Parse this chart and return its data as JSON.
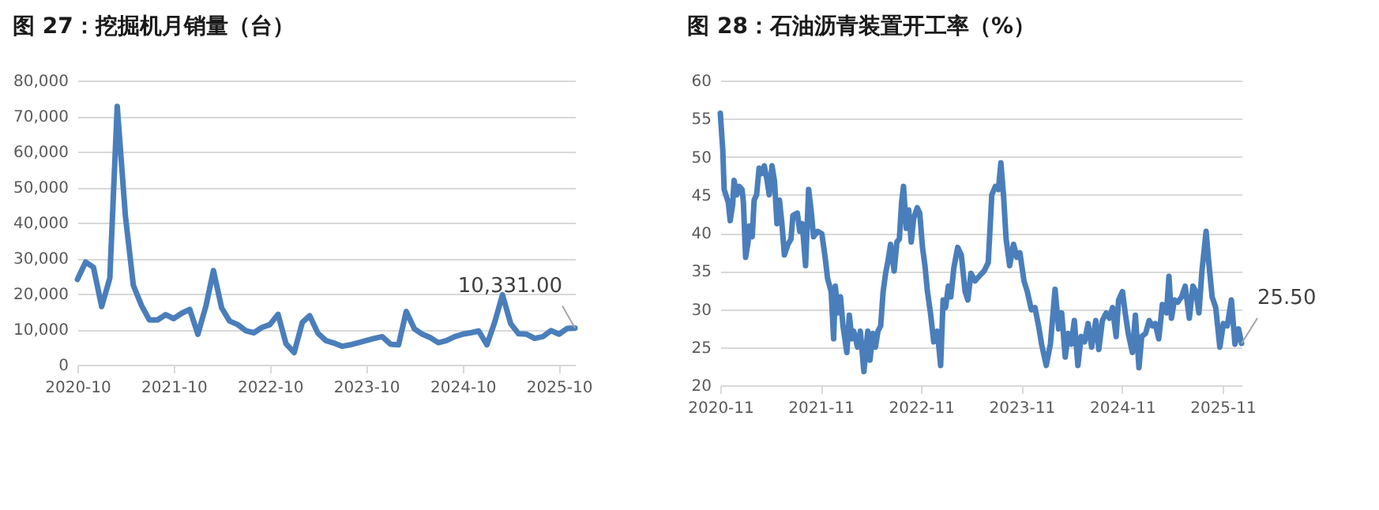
{
  "chart_data": [
    {
      "type": "line",
      "title": "图 27：挖掘机月销量（台）",
      "x": [
        "2020-10",
        "2020-11",
        "2020-12",
        "2021-01",
        "2021-02",
        "2021-03",
        "2021-04",
        "2021-05",
        "2021-06",
        "2021-07",
        "2021-08",
        "2021-09",
        "2021-10",
        "2021-11",
        "2021-12",
        "2022-01",
        "2022-02",
        "2022-03",
        "2022-04",
        "2022-05",
        "2022-06",
        "2022-07",
        "2022-08",
        "2022-09",
        "2022-10",
        "2022-11",
        "2022-12",
        "2023-01",
        "2023-02",
        "2023-03",
        "2023-04",
        "2023-05",
        "2023-06",
        "2023-07",
        "2023-08",
        "2023-09",
        "2023-10",
        "2023-11",
        "2023-12",
        "2024-01",
        "2024-02",
        "2024-03",
        "2024-04",
        "2024-05",
        "2024-06",
        "2024-07",
        "2024-08",
        "2024-09",
        "2024-10",
        "2024-11",
        "2024-12",
        "2025-01",
        "2025-02",
        "2025-03",
        "2025-04",
        "2025-05",
        "2025-06",
        "2025-07",
        "2025-08",
        "2025-09",
        "2025-10",
        "2025-11",
        "2025-12"
      ],
      "series": [
        {
          "color": "#4a7ebb",
          "values": [
            24000,
            28900,
            27400,
            16400,
            24400,
            72700,
            41900,
            22400,
            16700,
            12600,
            12600,
            14100,
            13000,
            14500,
            15600,
            8600,
            16700,
            26500,
            16000,
            12300,
            11300,
            9600,
            9000,
            10500,
            11300,
            14200,
            5900,
            3400,
            11900,
            13800,
            8900,
            6800,
            6100,
            5200,
            5600,
            6200,
            6800,
            7400,
            7900,
            5800,
            5600,
            15000,
            10100,
            8600,
            7600,
            6200,
            6800,
            7900,
            8600,
            9000,
            9500,
            5600,
            12300,
            19700,
            11600,
            8700,
            8600,
            7400,
            7900,
            9600,
            8600,
            10200,
            10331
          ]
        }
      ],
      "xlim": [
        "2020-10",
        "2025-12"
      ],
      "xticks": [
        "2020-10",
        "2021-10",
        "2022-10",
        "2023-10",
        "2024-10",
        "2025-10"
      ],
      "ylim": [
        0,
        80000
      ],
      "yticks": [
        {
          "value": 0,
          "label": "0"
        },
        {
          "value": 10000,
          "label": "10,000"
        },
        {
          "value": 20000,
          "label": "20,000"
        },
        {
          "value": 30000,
          "label": "30,000"
        },
        {
          "value": 40000,
          "label": "40,000"
        },
        {
          "value": 50000,
          "label": "50,000"
        },
        {
          "value": 60000,
          "label": "60,000"
        },
        {
          "value": 70000,
          "label": "70,000"
        },
        {
          "value": 80000,
          "label": "80,000"
        }
      ],
      "grid": "y",
      "annotations": [
        {
          "text": "10,331.00",
          "x": "2025-12",
          "y": 10331
        }
      ]
    },
    {
      "type": "line",
      "title": "图 28：石油沥青装置开工率（%）",
      "x": [
        "2020-11-01",
        "2020-11-10",
        "2020-11-15",
        "2020-11-30",
        "2020-12-07",
        "2020-12-16",
        "2020-12-21",
        "2020-12-31",
        "2021-01-09",
        "2021-01-19",
        "2021-01-24",
        "2021-02-01",
        "2021-02-10",
        "2021-02-15",
        "2021-02-25",
        "2021-03-04",
        "2021-03-13",
        "2021-03-22",
        "2021-04-01",
        "2021-04-10",
        "2021-04-19",
        "2021-04-28",
        "2021-05-08",
        "2021-05-17",
        "2021-05-26",
        "2021-06-04",
        "2021-06-13",
        "2021-06-22",
        "2021-07-05",
        "2021-07-16",
        "2021-07-23",
        "2021-08-08",
        "2021-08-17",
        "2021-08-26",
        "2021-09-07",
        "2021-09-18",
        "2021-09-27",
        "2021-10-06",
        "2021-10-21",
        "2021-11-05",
        "2021-11-16",
        "2021-11-26",
        "2021-12-09",
        "2021-12-18",
        "2021-12-24",
        "2022-01-03",
        "2022-01-12",
        "2022-01-21",
        "2022-02-04",
        "2022-02-13",
        "2022-02-22",
        "2022-03-01",
        "2022-03-15",
        "2022-03-25",
        "2022-04-07",
        "2022-04-21",
        "2022-04-29",
        "2022-05-10",
        "2022-05-19",
        "2022-05-28",
        "2022-06-07",
        "2022-06-16",
        "2022-06-25",
        "2022-07-04",
        "2022-07-13",
        "2022-07-26",
        "2022-08-05",
        "2022-08-14",
        "2022-08-22",
        "2022-08-29",
        "2022-09-08",
        "2022-09-17",
        "2022-09-26",
        "2022-10-05",
        "2022-10-18",
        "2022-10-27",
        "2022-11-06",
        "2022-11-15",
        "2022-11-24",
        "2022-12-05",
        "2022-12-17",
        "2022-12-30",
        "2023-01-11",
        "2023-01-20",
        "2023-01-29",
        "2023-02-08",
        "2023-02-17",
        "2023-02-28",
        "2023-03-14",
        "2023-03-27",
        "2023-04-10",
        "2023-04-20",
        "2023-05-01",
        "2023-05-16",
        "2023-05-31",
        "2023-06-18",
        "2023-07-03",
        "2023-07-16",
        "2023-07-29",
        "2023-08-09",
        "2023-08-18",
        "2023-08-28",
        "2023-09-06",
        "2023-09-19",
        "2023-10-03",
        "2023-10-15",
        "2023-10-26",
        "2023-11-10",
        "2023-11-22",
        "2023-12-07",
        "2023-12-20",
        "2024-01-02",
        "2024-01-13",
        "2024-01-30",
        "2024-02-14",
        "2024-03-02",
        "2024-03-15",
        "2024-03-26",
        "2024-04-08",
        "2024-04-19",
        "2024-04-30",
        "2024-05-11",
        "2024-05-24",
        "2024-06-05",
        "2024-06-17",
        "2024-06-30",
        "2024-07-13",
        "2024-07-28",
        "2024-08-08",
        "2024-08-21",
        "2024-09-04",
        "2024-09-16",
        "2024-09-27",
        "2024-10-10",
        "2024-10-19",
        "2024-11-02",
        "2024-11-12",
        "2024-11-23",
        "2024-12-08",
        "2024-12-19",
        "2025-01-01",
        "2025-01-11",
        "2025-01-25",
        "2025-02-07",
        "2025-02-19",
        "2025-03-01",
        "2025-03-14",
        "2025-03-27",
        "2025-04-11",
        "2025-04-20",
        "2025-04-29",
        "2025-05-10",
        "2025-05-22",
        "2025-06-05",
        "2025-06-18",
        "2025-07-03",
        "2025-07-16",
        "2025-07-27",
        "2025-08-07",
        "2025-08-18",
        "2025-09-02",
        "2025-09-11",
        "2025-09-24",
        "2025-10-07",
        "2025-10-22",
        "2025-11-04",
        "2025-11-18",
        "2025-12-03",
        "2025-12-16",
        "2025-12-29",
        "2026-01-09"
      ],
      "series": [
        {
          "color": "#4a7ebb",
          "values": [
            55.7,
            50.9,
            45.7,
            44.0,
            41.6,
            43.7,
            46.9,
            45.0,
            46.1,
            45.7,
            44.0,
            36.8,
            38.8,
            40.9,
            39.5,
            44.3,
            45.0,
            48.5,
            47.8,
            48.8,
            47.1,
            45.0,
            48.8,
            46.8,
            41.2,
            44.3,
            41.2,
            37.1,
            38.5,
            39.2,
            42.3,
            42.6,
            40.2,
            41.2,
            35.7,
            45.7,
            43.0,
            39.5,
            40.2,
            39.9,
            37.1,
            34.0,
            32.3,
            26.1,
            33.0,
            29.5,
            31.6,
            27.8,
            24.3,
            29.2,
            26.1,
            27.1,
            25.0,
            27.1,
            21.8,
            27.1,
            23.3,
            26.8,
            25.0,
            27.1,
            27.8,
            32.3,
            34.7,
            36.4,
            38.5,
            35.0,
            38.8,
            39.2,
            44.0,
            46.1,
            40.6,
            43.0,
            38.8,
            41.9,
            43.3,
            42.6,
            38.1,
            35.7,
            32.3,
            29.5,
            25.7,
            27.1,
            22.6,
            31.2,
            30.2,
            33.0,
            31.6,
            35.4,
            38.1,
            37.1,
            32.3,
            31.2,
            34.7,
            33.7,
            34.3,
            35.0,
            36.1,
            45.0,
            46.1,
            45.7,
            49.2,
            44.7,
            39.2,
            35.7,
            38.5,
            36.8,
            37.4,
            33.7,
            32.3,
            29.9,
            30.2,
            27.8,
            25.4,
            22.6,
            25.4,
            32.6,
            27.4,
            29.5,
            23.7,
            26.8,
            25.4,
            28.5,
            22.6,
            26.4,
            25.7,
            28.1,
            25.0,
            28.5,
            24.7,
            28.5,
            29.5,
            28.8,
            30.2,
            26.4,
            31.2,
            32.3,
            29.5,
            26.8,
            24.3,
            29.2,
            22.3,
            26.4,
            26.8,
            28.5,
            27.8,
            28.1,
            26.1,
            30.6,
            29.5,
            34.3,
            28.8,
            31.2,
            30.9,
            31.6,
            33.0,
            28.8,
            33.0,
            32.3,
            29.5,
            35.0,
            40.2,
            36.4,
            31.6,
            30.2,
            25.0,
            28.1,
            27.8,
            31.2,
            25.4,
            27.4,
            25.5
          ]
        }
      ],
      "xlim": [
        "2020-11-01",
        "2026-01-09"
      ],
      "xticks": [
        "2020-11",
        "2021-11",
        "2022-11",
        "2023-11",
        "2024-11",
        "2025-11"
      ],
      "ylim": [
        20,
        60
      ],
      "yticks": [
        20,
        25,
        30,
        35,
        40,
        45,
        50,
        55,
        60
      ],
      "grid": "y",
      "annotations": [
        {
          "text": "25.50",
          "x": "2026-01-09",
          "y": 25.5
        }
      ]
    }
  ]
}
